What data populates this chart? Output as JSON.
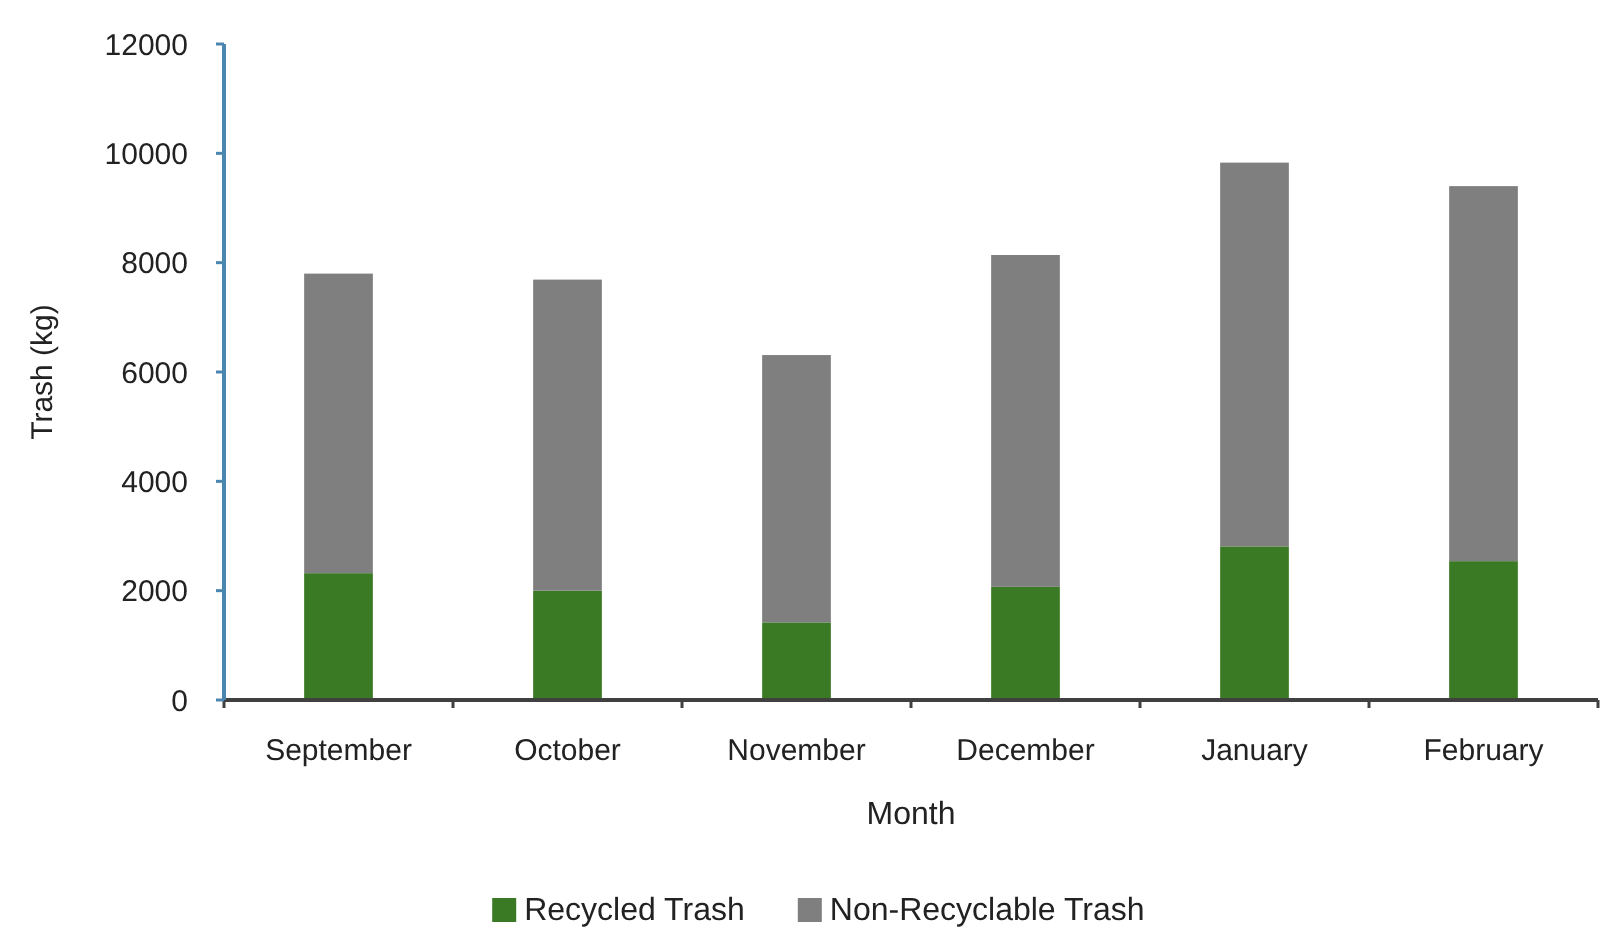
{
  "chart_data": {
    "type": "bar",
    "stacked": true,
    "xlabel": "Month",
    "ylabel": "Trash (kg)",
    "categories": [
      "September",
      "October",
      "November",
      "December",
      "January",
      "February"
    ],
    "series": [
      {
        "name": "Recycled Trash",
        "color": "#3b7a24",
        "values": [
          2320,
          2000,
          1420,
          2070,
          2810,
          2540
        ]
      },
      {
        "name": "Non-Recyclable Trash",
        "color": "#7f7f7f",
        "values": [
          5480,
          5690,
          4890,
          6070,
          7020,
          6860
        ]
      }
    ],
    "ylim": [
      0,
      12000
    ],
    "yticks": [
      0,
      2000,
      4000,
      6000,
      8000,
      10000,
      12000
    ],
    "grid": false,
    "legend": "bottom"
  }
}
